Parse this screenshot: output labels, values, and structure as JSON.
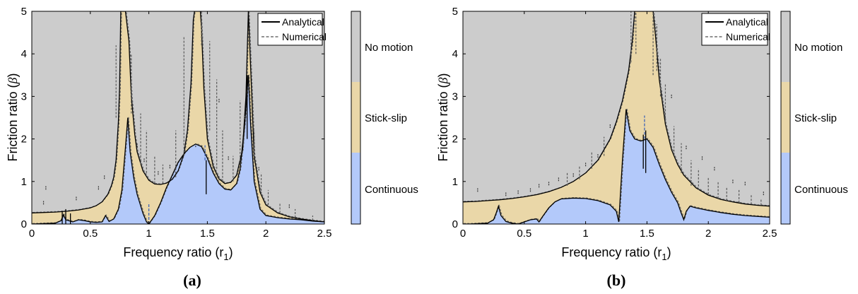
{
  "chart_data": [
    {
      "type": "area",
      "panel_label": "(a)",
      "xlabel": "Frequency ratio (r",
      "xlabel_sub": "1",
      "xlabel_close": ")",
      "ylabel": "Friction ratio (",
      "ylabel_symbol": "β",
      "ylabel_close": ")",
      "xlim": [
        0,
        2.5
      ],
      "ylim": [
        0,
        5
      ],
      "xticks": [
        "0",
        "0.5",
        "1",
        "1.5",
        "2",
        "2.5"
      ],
      "yticks": [
        "0",
        "1",
        "2",
        "3",
        "4",
        "5"
      ],
      "grid": false,
      "legend_position": "top-right",
      "legend": [
        {
          "name": "Analytical",
          "style": "solid",
          "color": "#000000"
        },
        {
          "name": "Numerical",
          "style": "dashed",
          "color": "#6e6e6e"
        }
      ],
      "regions": {
        "no_motion": {
          "label": "No motion",
          "color": "#cccccc"
        },
        "stick_slip": {
          "label": "Stick-slip",
          "color": "#ead7a8"
        },
        "continuous": {
          "label": "Continuous",
          "color": "#b3c9fa"
        }
      },
      "boundary_upper": {
        "x": [
          0,
          0.1,
          0.2,
          0.3,
          0.4,
          0.5,
          0.55,
          0.6,
          0.65,
          0.68,
          0.7,
          0.72,
          0.74,
          0.75,
          0.76,
          0.8,
          0.83,
          0.85,
          0.88,
          0.9,
          0.95,
          1.0,
          1.05,
          1.1,
          1.15,
          1.2,
          1.25,
          1.3,
          1.33,
          1.36,
          1.38,
          1.39,
          1.4,
          1.44,
          1.45,
          1.47,
          1.5,
          1.55,
          1.6,
          1.65,
          1.7,
          1.75,
          1.8,
          1.83,
          1.85,
          1.88,
          1.9,
          1.95,
          2.0,
          2.1,
          2.2,
          2.3,
          2.4,
          2.5
        ],
        "y": [
          0.26,
          0.27,
          0.28,
          0.3,
          0.33,
          0.38,
          0.43,
          0.52,
          0.7,
          0.9,
          1.1,
          1.5,
          2.4,
          3.2,
          5.0,
          5.0,
          4.3,
          3.0,
          2.1,
          1.7,
          1.25,
          1.03,
          0.94,
          0.93,
          0.96,
          1.05,
          1.25,
          1.65,
          2.2,
          3.3,
          4.8,
          5.0,
          5.0,
          5.0,
          4.6,
          3.2,
          2.0,
          1.35,
          1.06,
          0.95,
          0.98,
          1.15,
          1.75,
          3.0,
          5.0,
          3.0,
          1.6,
          0.75,
          0.45,
          0.26,
          0.17,
          0.12,
          0.08,
          0.05
        ]
      },
      "boundary_lower": {
        "x": [
          0,
          0.2,
          0.25,
          0.27,
          0.29,
          0.35,
          0.4,
          0.45,
          0.5,
          0.55,
          0.6,
          0.63,
          0.66,
          0.7,
          0.74,
          0.77,
          0.8,
          0.82,
          0.84,
          0.87,
          0.9,
          0.95,
          0.98,
          1.0,
          1.05,
          1.1,
          1.15,
          1.2,
          1.25,
          1.3,
          1.35,
          1.4,
          1.45,
          1.5,
          1.55,
          1.6,
          1.65,
          1.7,
          1.75,
          1.78,
          1.82,
          1.85,
          1.87,
          1.9,
          1.95,
          2.0,
          2.1,
          2.2,
          2.3,
          2.4,
          2.5
        ],
        "y": [
          0.0,
          0.02,
          0.08,
          0.22,
          0.1,
          0.05,
          0.1,
          0.08,
          0.05,
          0.04,
          0.05,
          0.2,
          0.06,
          0.12,
          0.35,
          0.8,
          1.8,
          2.5,
          1.7,
          1.1,
          0.7,
          0.25,
          0.05,
          0.0,
          0.2,
          0.5,
          0.85,
          1.15,
          1.45,
          1.65,
          1.8,
          1.88,
          1.82,
          1.55,
          1.2,
          0.95,
          0.82,
          0.8,
          0.95,
          1.3,
          2.4,
          3.5,
          2.3,
          1.0,
          0.35,
          0.2,
          0.15,
          0.12,
          0.1,
          0.07,
          0.05
        ]
      },
      "numerical_spikes": [
        {
          "x": 0.72,
          "y0": 2.5,
          "y1": 4.2
        },
        {
          "x": 0.85,
          "y0": 2.6,
          "y1": 4.0
        },
        {
          "x": 0.93,
          "y0": 1.4,
          "y1": 2.6
        },
        {
          "x": 0.98,
          "y0": 1.2,
          "y1": 2.2
        },
        {
          "x": 1.05,
          "y0": 0.95,
          "y1": 1.6
        },
        {
          "x": 1.12,
          "y0": 0.95,
          "y1": 1.4
        },
        {
          "x": 1.23,
          "y0": 1.1,
          "y1": 2.2
        },
        {
          "x": 1.3,
          "y0": 1.6,
          "y1": 4.4
        },
        {
          "x": 1.45,
          "y0": 4.2,
          "y1": 5.0
        },
        {
          "x": 1.52,
          "y0": 2.2,
          "y1": 4.3
        },
        {
          "x": 1.58,
          "y0": 1.3,
          "y1": 3.4
        },
        {
          "x": 1.63,
          "y0": 1.0,
          "y1": 2.2
        },
        {
          "x": 1.72,
          "y0": 1.0,
          "y1": 1.6
        },
        {
          "x": 1.78,
          "y0": 1.4,
          "y1": 2.9
        },
        {
          "x": 1.9,
          "y0": 1.6,
          "y1": 2.2
        },
        {
          "x": 1.96,
          "y0": 0.7,
          "y1": 1.2
        },
        {
          "x": 2.02,
          "y0": 0.45,
          "y1": 0.8
        },
        {
          "x": 2.12,
          "y0": 0.26,
          "y1": 0.5
        },
        {
          "x": 2.25,
          "y0": 0.15,
          "y1": 0.35
        },
        {
          "x": 2.4,
          "y0": 0.08,
          "y1": 0.2
        }
      ],
      "numerical_dots": [
        {
          "x": 0.1,
          "y": 0.5
        },
        {
          "x": 0.12,
          "y": 0.85
        },
        {
          "x": 0.38,
          "y": 0.6
        },
        {
          "x": 0.57,
          "y": 0.85
        },
        {
          "x": 0.62,
          "y": 1.1
        },
        {
          "x": 0.9,
          "y": 1.85
        },
        {
          "x": 0.96,
          "y": 1.5
        },
        {
          "x": 1.08,
          "y": 1.2
        },
        {
          "x": 1.18,
          "y": 1.35
        },
        {
          "x": 1.4,
          "y": 1.85
        },
        {
          "x": 1.6,
          "y": 2.9
        },
        {
          "x": 1.68,
          "y": 1.55
        },
        {
          "x": 1.82,
          "y": 2.5
        },
        {
          "x": 1.94,
          "y": 1.3
        },
        {
          "x": 2.2,
          "y": 0.42
        }
      ],
      "black_spikes": [
        {
          "x": 0.26,
          "y0": 0.0,
          "y1": 0.3
        },
        {
          "x": 0.29,
          "y0": 0.0,
          "y1": 0.35
        },
        {
          "x": 0.33,
          "y0": 0.0,
          "y1": 0.25
        },
        {
          "x": 1.49,
          "y0": 0.7,
          "y1": 1.5
        },
        {
          "x": 1.84,
          "y0": 2.0,
          "y1": 3.5
        }
      ],
      "blue_spikes": [
        {
          "x": 1.0,
          "y0": 0.0,
          "y1": 0.5
        },
        {
          "x": 1.48,
          "y0": 1.5,
          "y1": 1.85
        }
      ]
    },
    {
      "type": "area",
      "panel_label": "(b)",
      "xlabel": "Frequency ratio (r",
      "xlabel_sub": "1",
      "xlabel_close": ")",
      "ylabel": "Friction ratio (",
      "ylabel_symbol": "β",
      "ylabel_close": ")",
      "xlim": [
        0,
        2.5
      ],
      "ylim": [
        0,
        5
      ],
      "xticks": [
        "0",
        "0.5",
        "1",
        "1.5",
        "2",
        "2.5"
      ],
      "yticks": [
        "0",
        "1",
        "2",
        "3",
        "4",
        "5"
      ],
      "grid": false,
      "legend_position": "top-right",
      "legend": [
        {
          "name": "Analytical",
          "style": "solid",
          "color": "#000000"
        },
        {
          "name": "Numerical",
          "style": "dashed",
          "color": "#6e6e6e"
        }
      ],
      "regions": {
        "no_motion": {
          "label": "No motion",
          "color": "#cccccc"
        },
        "stick_slip": {
          "label": "Stick-slip",
          "color": "#ead7a8"
        },
        "continuous": {
          "label": "Continuous",
          "color": "#b3c9fa"
        }
      },
      "boundary_upper": {
        "x": [
          0,
          0.1,
          0.2,
          0.3,
          0.4,
          0.5,
          0.6,
          0.7,
          0.8,
          0.9,
          1.0,
          1.1,
          1.2,
          1.25,
          1.3,
          1.35,
          1.38,
          1.4,
          1.42,
          1.55,
          1.57,
          1.6,
          1.65,
          1.7,
          1.75,
          1.8,
          1.9,
          2.0,
          2.1,
          2.2,
          2.3,
          2.4,
          2.5
        ],
        "y": [
          0.52,
          0.53,
          0.55,
          0.57,
          0.6,
          0.64,
          0.69,
          0.76,
          0.86,
          1.0,
          1.2,
          1.5,
          2.0,
          2.4,
          2.9,
          3.6,
          4.3,
          5.0,
          5.0,
          5.0,
          4.4,
          3.4,
          2.35,
          1.75,
          1.4,
          1.15,
          0.85,
          0.68,
          0.58,
          0.52,
          0.47,
          0.44,
          0.42
        ]
      },
      "boundary_lower": {
        "x": [
          0,
          0.05,
          0.2,
          0.25,
          0.27,
          0.29,
          0.31,
          0.35,
          0.4,
          0.45,
          0.5,
          0.55,
          0.6,
          0.62,
          0.65,
          0.7,
          0.75,
          0.8,
          0.9,
          1.0,
          1.1,
          1.2,
          1.25,
          1.27,
          1.3,
          1.33,
          1.36,
          1.4,
          1.45,
          1.5,
          1.55,
          1.6,
          1.65,
          1.7,
          1.75,
          1.78,
          1.8,
          1.82,
          1.85,
          1.9,
          2.0,
          2.1,
          2.2,
          2.3,
          2.4,
          2.5
        ],
        "y": [
          0.0,
          0.0,
          0.02,
          0.1,
          0.25,
          0.42,
          0.2,
          0.06,
          0.02,
          0.0,
          0.05,
          0.1,
          0.12,
          0.05,
          0.18,
          0.38,
          0.52,
          0.59,
          0.61,
          0.6,
          0.55,
          0.45,
          0.3,
          0.05,
          1.5,
          2.7,
          2.2,
          2.0,
          1.95,
          2.0,
          1.8,
          1.4,
          1.05,
          0.75,
          0.5,
          0.25,
          0.1,
          0.3,
          0.42,
          0.38,
          0.32,
          0.27,
          0.23,
          0.2,
          0.18,
          0.16
        ]
      },
      "numerical_spikes": [
        {
          "x": 1.37,
          "y0": 3.8,
          "y1": 5.0
        },
        {
          "x": 1.41,
          "y0": 4.0,
          "y1": 5.0
        },
        {
          "x": 1.55,
          "y0": 3.5,
          "y1": 5.0
        },
        {
          "x": 1.58,
          "y0": 3.6,
          "y1": 4.7
        },
        {
          "x": 1.61,
          "y0": 3.0,
          "y1": 3.9
        },
        {
          "x": 1.65,
          "y0": 2.4,
          "y1": 3.3
        },
        {
          "x": 1.72,
          "y0": 1.7,
          "y1": 2.3
        },
        {
          "x": 1.78,
          "y0": 1.2,
          "y1": 1.9
        },
        {
          "x": 1.86,
          "y0": 0.9,
          "y1": 1.5
        },
        {
          "x": 1.92,
          "y0": 0.8,
          "y1": 1.3
        },
        {
          "x": 2.0,
          "y0": 0.7,
          "y1": 1.1
        },
        {
          "x": 2.08,
          "y0": 0.6,
          "y1": 1.0
        },
        {
          "x": 2.15,
          "y0": 0.55,
          "y1": 0.85
        },
        {
          "x": 2.25,
          "y0": 0.5,
          "y1": 0.8
        },
        {
          "x": 2.35,
          "y0": 0.46,
          "y1": 0.7
        },
        {
          "x": 2.43,
          "y0": 0.44,
          "y1": 0.6
        },
        {
          "x": 0.85,
          "y0": 0.9,
          "y1": 1.2
        },
        {
          "x": 0.95,
          "y0": 1.05,
          "y1": 1.35
        },
        {
          "x": 1.05,
          "y0": 1.3,
          "y1": 1.7
        },
        {
          "x": 1.15,
          "y0": 1.6,
          "y1": 2.05
        }
      ],
      "numerical_dots": [
        {
          "x": 0.12,
          "y": 0.8
        },
        {
          "x": 0.35,
          "y": 0.7
        },
        {
          "x": 0.45,
          "y": 0.75
        },
        {
          "x": 0.55,
          "y": 0.8
        },
        {
          "x": 0.62,
          "y": 0.9
        },
        {
          "x": 0.7,
          "y": 0.95
        },
        {
          "x": 0.78,
          "y": 1.05
        },
        {
          "x": 0.9,
          "y": 1.15
        },
        {
          "x": 1.0,
          "y": 1.4
        },
        {
          "x": 1.1,
          "y": 1.6
        },
        {
          "x": 1.2,
          "y": 2.3
        },
        {
          "x": 1.7,
          "y": 3.0
        },
        {
          "x": 1.82,
          "y": 1.8
        },
        {
          "x": 1.95,
          "y": 1.55
        },
        {
          "x": 2.05,
          "y": 1.3
        },
        {
          "x": 2.2,
          "y": 1.0
        },
        {
          "x": 2.3,
          "y": 0.95
        },
        {
          "x": 2.45,
          "y": 0.72
        }
      ],
      "black_spikes": [
        {
          "x": 1.47,
          "y0": 1.3,
          "y1": 2.1
        },
        {
          "x": 1.49,
          "y0": 1.2,
          "y1": 2.2
        }
      ],
      "blue_spikes": [
        {
          "x": 1.48,
          "y0": 2.0,
          "y1": 2.55
        }
      ]
    }
  ]
}
